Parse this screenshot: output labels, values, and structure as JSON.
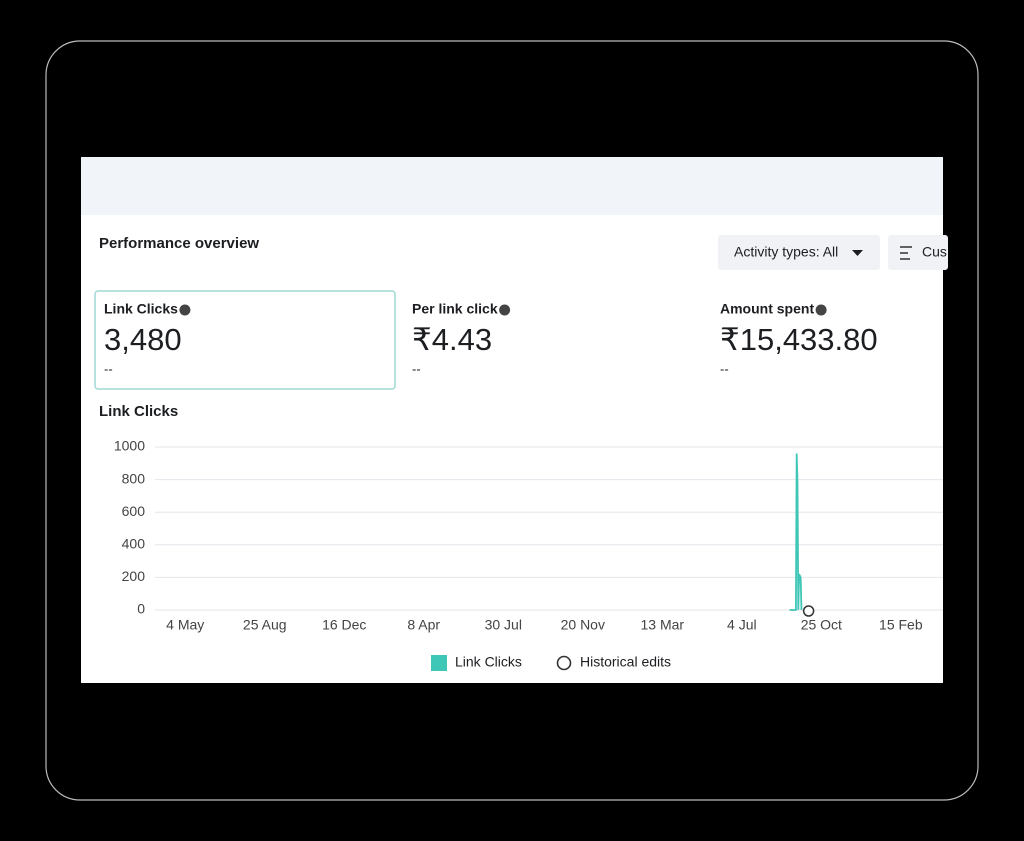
{
  "header": {
    "title": "Performance overview",
    "filter": "Activity types: All",
    "button": "Cus"
  },
  "metrics": [
    {
      "label": "Link Clicks",
      "value": "3,480",
      "change": "--"
    },
    {
      "label": "Per link click",
      "value": "₹4.43",
      "change": "--"
    },
    {
      "label": "Amount spent",
      "value": "₹15,433.80",
      "change": "--"
    }
  ],
  "chart_data": {
    "type": "line",
    "title": "Link Clicks",
    "xlim": [
      -0.38,
      9.53
    ],
    "xticks": [
      {
        "value": 0,
        "label": "4 May"
      },
      {
        "value": 1,
        "label": "25 Aug"
      },
      {
        "value": 2,
        "label": "16 Dec"
      },
      {
        "value": 3,
        "label": "8 Apr"
      },
      {
        "value": 4,
        "label": "30 Jul"
      },
      {
        "value": 5,
        "label": "20 Nov"
      },
      {
        "value": 6,
        "label": "13 Mar"
      },
      {
        "value": 7,
        "label": "4 Jul"
      },
      {
        "value": 8,
        "label": "25 Oct"
      },
      {
        "value": 9,
        "label": "15 Feb"
      }
    ],
    "ylim": [
      0,
      1000
    ],
    "yticks": [
      0,
      200,
      400,
      600,
      800,
      1000
    ],
    "grid": true,
    "series": [
      {
        "name": "Link Clicks",
        "color": "#3ec6b7",
        "x": [
          7.6,
          7.68,
          7.69,
          7.7,
          7.71,
          7.72,
          7.74,
          7.75
        ],
        "values": [
          0,
          0,
          960,
          780,
          0,
          220,
          200,
          0
        ]
      }
    ],
    "annotations": [
      {
        "name": "Historical edits",
        "x": 7.84
      }
    ]
  }
}
